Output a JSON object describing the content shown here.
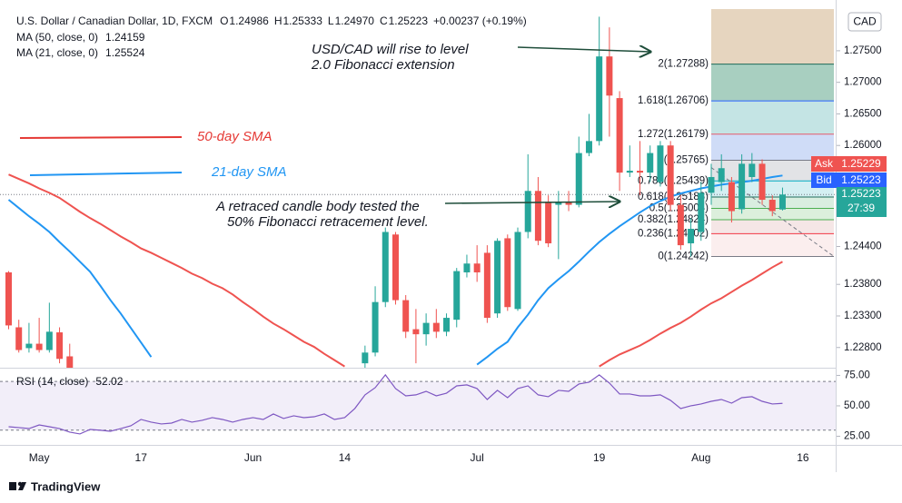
{
  "chart_data": {
    "type": "candlestick",
    "header": "U.S. Dollar / Canadian Dollar, 1D, FXCM",
    "ohlc_legend": [
      {
        "key": "O",
        "text": "1.24986"
      },
      {
        "key": "H",
        "text": "1.25333"
      },
      {
        "key": "L",
        "text": "1.24970"
      },
      {
        "key": "C",
        "text": "1.25223"
      },
      {
        "text": "+0.00237 (+0.19%)"
      }
    ],
    "currency": "CAD",
    "categories": [
      null,
      null,
      null,
      "May",
      null,
      null,
      null,
      null,
      null,
      null,
      null,
      null,
      null,
      "17",
      null,
      null,
      null,
      null,
      null,
      null,
      null,
      null,
      null,
      null,
      "Jun",
      null,
      null,
      null,
      null,
      null,
      null,
      null,
      null,
      "14",
      null,
      null,
      null,
      null,
      null,
      null,
      null,
      null,
      null,
      null,
      null,
      null,
      "Jul",
      null,
      null,
      null,
      null,
      null,
      null,
      null,
      null,
      null,
      null,
      null,
      "19",
      null,
      null,
      null,
      null,
      null,
      null,
      null,
      null,
      null,
      "Aug",
      null,
      null,
      null,
      null,
      null,
      null,
      null,
      null,
      null,
      "16",
      null,
      null
    ],
    "open": [
      1.2399,
      1.2312,
      1.2279,
      1.2286,
      1.2276,
      1.2304,
      1.2266,
      null,
      null,
      null,
      null,
      null,
      null,
      null,
      null,
      null,
      null,
      null,
      null,
      null,
      null,
      null,
      null,
      null,
      null,
      null,
      null,
      null,
      null,
      null,
      null,
      null,
      null,
      null,
      null,
      1.2255,
      1.2272,
      1.2352,
      1.2459,
      1.2355,
      1.2309,
      1.2301,
      1.2319,
      1.2305,
      1.2324,
      1.2399,
      1.2413,
      1.243,
      1.2334,
      1.2453,
      1.2341,
      1.2463,
      1.2528,
      1.2511,
      1.2506,
      1.2511,
      1.2506,
      1.2588,
      1.2607,
      1.2741,
      1.2675,
      1.2557,
      1.256,
      1.2557,
      1.2542,
      1.26,
      1.2506,
      1.2445,
      1.2463,
      1.2525,
      1.2542,
      1.2542,
      1.2499,
      1.255,
      1.2571,
      1.2514,
      1.24986,
      null,
      null,
      null,
      null
    ],
    "high": [
      1.2401,
      1.2324,
      1.2319,
      1.2327,
      1.2351,
      1.2312,
      1.2286,
      null,
      null,
      null,
      null,
      null,
      null,
      null,
      null,
      null,
      null,
      null,
      null,
      null,
      null,
      null,
      null,
      null,
      null,
      null,
      null,
      null,
      null,
      null,
      null,
      null,
      null,
      null,
      null,
      1.2283,
      1.2377,
      1.247,
      1.2463,
      1.2363,
      1.2341,
      1.2334,
      1.2341,
      1.2334,
      1.2406,
      1.2427,
      1.2442,
      1.2442,
      1.2453,
      1.2459,
      1.247,
      1.2586,
      1.255,
      1.2521,
      1.2528,
      1.2528,
      1.2614,
      1.265,
      1.2804,
      1.2787,
      1.2686,
      1.26,
      1.2607,
      1.26,
      1.2607,
      1.2607,
      1.2521,
      1.2485,
      1.2542,
      1.2571,
      1.2586,
      1.255,
      1.2586,
      1.2588,
      1.2578,
      1.2521,
      1.25333,
      null,
      null,
      null,
      null
    ],
    "low": [
      1.2309,
      1.2272,
      1.2272,
      1.2272,
      1.2272,
      1.2255,
      1.2233,
      null,
      null,
      null,
      null,
      null,
      null,
      null,
      null,
      null,
      null,
      null,
      null,
      null,
      null,
      null,
      null,
      null,
      null,
      null,
      null,
      null,
      null,
      null,
      null,
      null,
      null,
      null,
      null,
      1.2247,
      1.2266,
      1.2344,
      1.2348,
      1.2295,
      1.2255,
      1.2283,
      1.2295,
      1.2298,
      1.2312,
      1.2391,
      1.2384,
      1.2319,
      1.2327,
      1.2338,
      1.2338,
      1.2453,
      1.2442,
      1.2439,
      1.242,
      1.2496,
      1.2502,
      1.2583,
      1.26,
      1.2614,
      1.2528,
      1.255,
      1.2521,
      1.2542,
      1.2535,
      1.2496,
      1.2435,
      1.2424,
      1.2449,
      1.2506,
      1.2528,
      1.2478,
      1.2492,
      1.2542,
      1.2506,
      1.2488,
      1.2497,
      null,
      null,
      null,
      null
    ],
    "close": [
      1.2315,
      1.2276,
      1.2286,
      1.2276,
      1.2305,
      1.2262,
      1.224,
      null,
      null,
      null,
      null,
      null,
      null,
      null,
      null,
      null,
      null,
      null,
      null,
      null,
      null,
      null,
      null,
      null,
      null,
      null,
      null,
      null,
      null,
      null,
      null,
      null,
      null,
      null,
      null,
      1.2272,
      1.2352,
      1.2463,
      1.2355,
      1.2305,
      1.2301,
      1.2319,
      1.2305,
      1.2327,
      1.2401,
      1.2413,
      1.2399,
      1.2327,
      1.2449,
      1.2344,
      1.2463,
      1.2528,
      1.2449,
      1.2445,
      1.2511,
      1.2506,
      1.2588,
      1.2607,
      1.2741,
      1.2679,
      1.2557,
      1.256,
      1.2557,
      1.2588,
      1.26,
      1.2506,
      1.2442,
      1.2468,
      1.2525,
      1.255,
      1.2564,
      1.2496,
      1.2571,
      1.2571,
      1.2514,
      1.2496,
      1.25223,
      null,
      null,
      null,
      null
    ],
    "up_color": "#26a69a",
    "down_color": "#ef5350",
    "ylim": [
      1.2248,
      1.2816
    ],
    "yticks": [
      {
        "value": 1.275,
        "label": "1.27500"
      },
      {
        "value": 1.27,
        "label": "1.27000"
      },
      {
        "value": 1.265,
        "label": "1.26500"
      },
      {
        "value": 1.26,
        "label": "1.26000"
      },
      {
        "value": 1.244,
        "label": "1.24400"
      },
      {
        "value": 1.238,
        "label": "1.23800"
      },
      {
        "value": 1.233,
        "label": "1.23300"
      },
      {
        "value": 1.228,
        "label": "1.22800"
      }
    ],
    "series": [
      {
        "name": "MA (50, close, 0)",
        "color": "#ef5350",
        "value_label": "1.24159",
        "values": [
          1.2554,
          1.2547,
          1.254,
          1.2532,
          1.2525,
          1.2517,
          1.2506,
          1.2495,
          1.2485,
          1.2476,
          1.2466,
          1.2456,
          1.2447,
          1.2437,
          1.243,
          1.2422,
          1.2414,
          1.2406,
          1.2397,
          1.239,
          1.2381,
          1.2374,
          1.2364,
          1.2352,
          1.2341,
          1.2329,
          1.2318,
          1.2309,
          1.2299,
          1.2289,
          1.2281,
          1.227,
          1.226,
          1.225,
          null,
          null,
          null,
          null,
          null,
          null,
          null,
          null,
          null,
          null,
          null,
          null,
          null,
          null,
          null,
          null,
          null,
          null,
          null,
          null,
          null,
          null,
          null,
          null,
          1.225,
          1.226,
          1.2269,
          1.2276,
          1.2283,
          1.2292,
          1.2302,
          1.2311,
          1.2319,
          1.2329,
          1.234,
          1.235,
          1.2358,
          1.2368,
          1.2378,
          1.2387,
          1.2397,
          1.2407,
          1.24159,
          null,
          null,
          null,
          null
        ]
      },
      {
        "name": "MA (21, close, 0)",
        "color": "#2196f3",
        "value_label": "1.25524",
        "values": [
          1.2514,
          1.2501,
          1.2488,
          1.2476,
          1.2463,
          1.2447,
          1.2432,
          1.2416,
          1.24,
          1.2378,
          1.2355,
          1.2334,
          1.2311,
          1.2288,
          1.2265,
          null,
          null,
          null,
          null,
          null,
          null,
          null,
          null,
          null,
          null,
          null,
          null,
          null,
          null,
          null,
          null,
          null,
          null,
          null,
          null,
          null,
          null,
          null,
          null,
          null,
          null,
          null,
          null,
          null,
          null,
          null,
          1.2253,
          1.2265,
          1.2278,
          1.2289,
          1.2312,
          1.2332,
          1.2355,
          1.2374,
          1.2388,
          1.2401,
          1.2416,
          1.2432,
          1.2447,
          1.246,
          1.2472,
          1.2483,
          1.2494,
          1.2504,
          1.2512,
          1.2519,
          1.2524,
          1.2528,
          1.2532,
          1.2535,
          1.2538,
          1.254,
          1.2542,
          1.2544,
          1.2547,
          1.255,
          1.25524,
          null,
          null,
          null,
          null
        ]
      }
    ],
    "fib": {
      "levels": [
        {
          "label": "2(1.27288)",
          "value": 1.27288,
          "color": "#1e6b5a",
          "fill": "#a8cfc0"
        },
        {
          "label": "1.618(1.26706)",
          "value": 1.26706,
          "color": "#2962ff",
          "fill": "#c4e4e4"
        },
        {
          "label": "1.272(1.26179)",
          "value": 1.26179,
          "color": "#e65a6c",
          "fill": "#cfdcf7"
        },
        {
          "label": "1(1.25765)",
          "value": 1.25765,
          "color": "#787b86",
          "fill": "#e2e3e6"
        },
        {
          "label": "0.786(1.25439)",
          "value": 1.25439,
          "color": "#00acc1",
          "fill": "#d4eff2"
        },
        {
          "label": "0.618(1.25183)",
          "value": 1.25183,
          "color": "#1e6b5a",
          "fill": "#d9eee0"
        },
        {
          "label": "0.5(1.25004)",
          "value": 1.25004,
          "color": "#4caf50",
          "fill": "#dcefdc"
        },
        {
          "label": "0.382(1.24824)",
          "value": 1.24824,
          "color": "#4caf50",
          "fill": "#f5e6e6"
        },
        {
          "label": "0.236(1.24602)",
          "value": 1.24602,
          "color": "#f23645",
          "fill": "#fbeeee"
        },
        {
          "label": "0(1.24242)",
          "value": 1.24242,
          "color": "#787b86"
        }
      ]
    },
    "price_tags": [
      {
        "name": "Ask",
        "label": "1.25229"
      },
      {
        "name": "Bid",
        "label": "1.25223"
      },
      {
        "label": "1.25223",
        "countdown": "27:39"
      }
    ],
    "annotations": [
      {
        "lines": [
          "USD/CAD will rise to level",
          "2.0 Fibonacci extension"
        ]
      },
      {
        "lines": [
          "A  retraced candle body  tested the",
          "50% Fibonacci retracement level."
        ]
      },
      {
        "text": "50-day SMA"
      },
      {
        "text": "21-day SMA"
      }
    ],
    "rsi": {
      "name": "RSI (14, close)",
      "value_label": "52.02",
      "color": "#7e57c2",
      "ylim": [
        17.9,
        81.3
      ],
      "yticks": [
        {
          "value": 75,
          "label": "75.00"
        },
        {
          "value": 50,
          "label": "50.00"
        },
        {
          "value": 25,
          "label": "25.00"
        }
      ],
      "bands": [
        30,
        70
      ],
      "values": [
        32.8,
        32.1,
        31.3,
        34.3,
        32.8,
        31.3,
        28.4,
        26.9,
        30.6,
        29.9,
        29.1,
        31.3,
        33.6,
        38.8,
        36.6,
        35.1,
        35.8,
        38.8,
        36.6,
        38.1,
        40.3,
        38.8,
        36.6,
        38.8,
        40.3,
        38.8,
        43.3,
        39.6,
        41.8,
        40.3,
        41,
        43.3,
        38.8,
        40.3,
        47.8,
        59,
        64.9,
        75.4,
        64.2,
        58.2,
        59,
        61.9,
        58.2,
        60.4,
        66.4,
        67.2,
        64.2,
        55.2,
        62.7,
        56.7,
        64.2,
        66.4,
        59,
        57.5,
        62.7,
        61.9,
        67.9,
        69.4,
        75.4,
        68.7,
        59.7,
        59.7,
        58.2,
        58.2,
        59,
        54.5,
        47.8,
        50,
        51.5,
        53.7,
        55.2,
        52.2,
        56.7,
        57.5,
        53.7,
        51.5,
        52.02,
        null,
        null,
        null,
        null
      ]
    },
    "brand": "TradingView"
  }
}
